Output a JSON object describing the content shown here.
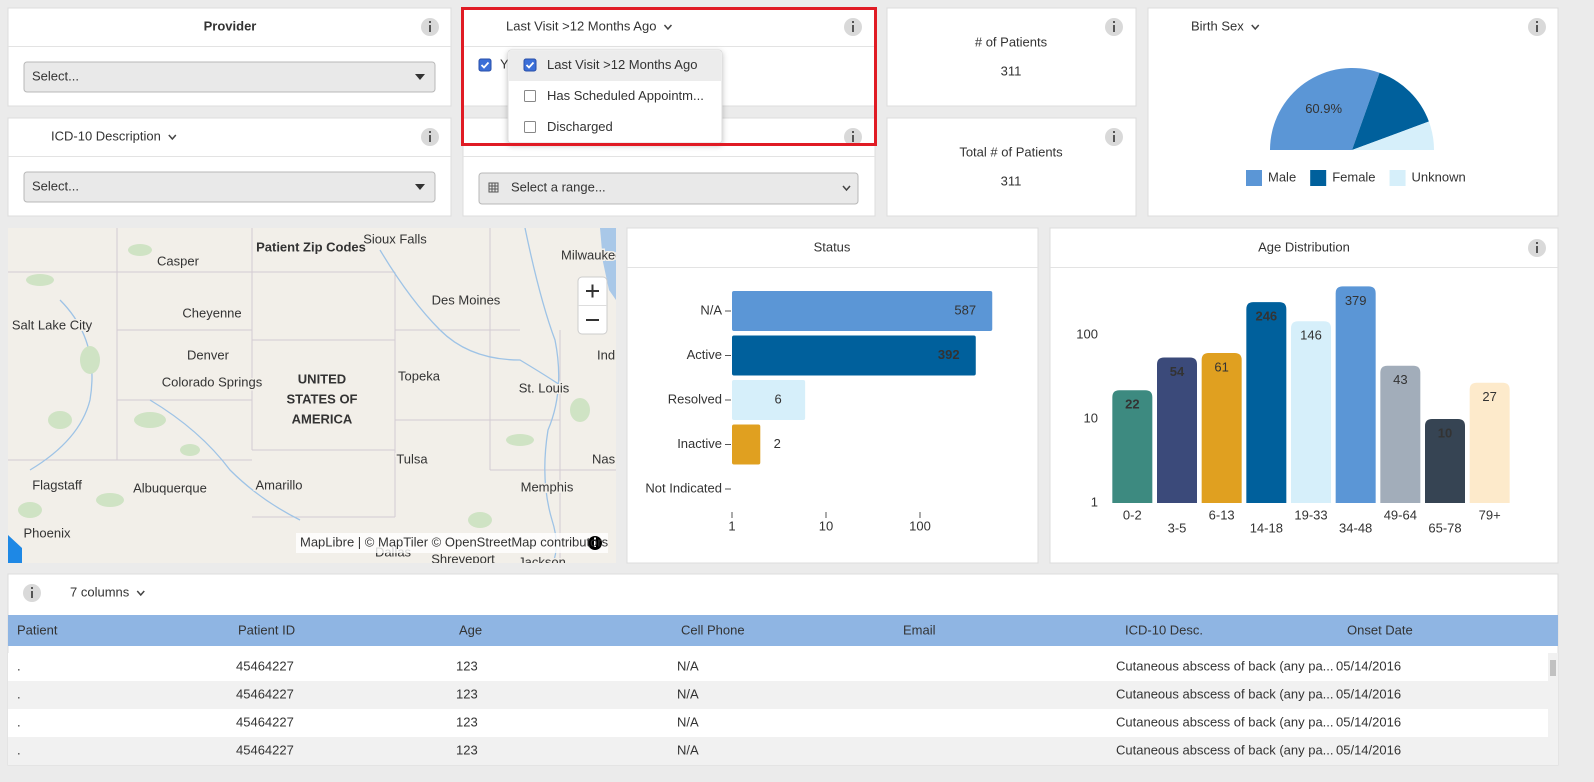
{
  "filters": {
    "provider": {
      "title": "Provider",
      "placeholder": "Select..."
    },
    "icd10": {
      "title": "ICD-10 Description",
      "placeholder": "Select..."
    },
    "last_visit": {
      "title": "Last Visit >12 Months Ago",
      "value": {
        "label": "Yes",
        "checked": true
      },
      "options": [
        {
          "label": "Last Visit >12 Months Ago",
          "checked": true
        },
        {
          "label": "Has Scheduled Appointm...",
          "checked": false
        },
        {
          "label": "Discharged",
          "checked": false
        }
      ]
    },
    "date_range": {
      "placeholder": "Select a range..."
    }
  },
  "kpis": [
    {
      "title": "# of Patients",
      "value": 311
    },
    {
      "title": "Total # of Patients",
      "value": 311
    }
  ],
  "map": {
    "title": "Patient Zip Codes",
    "country": [
      "UNITED",
      "STATES OF",
      "AMERICA"
    ],
    "cities": [
      "Sioux Falls",
      "Casper",
      "Milwaukee",
      "Cheyenne",
      "Des Moines",
      "Salt Lake City",
      "Denver",
      "Indianapolis",
      "Colorado Springs",
      "Topeka",
      "St. Louis",
      "Tulsa",
      "Nashville",
      "Flagstaff",
      "Albuquerque",
      "Amarillo",
      "Memphis",
      "Phoenix",
      "Dallas",
      "Shreveport",
      "Jackson"
    ],
    "attribution": "MapLibre | © MapTiler © OpenStreetMap contributors"
  },
  "chart_data": [
    {
      "type": "hbar",
      "title": "Status",
      "categories": [
        "N/A",
        "Active",
        "Resolved",
        "Inactive",
        "Not Indicated"
      ],
      "values": [
        587,
        392,
        6,
        2,
        null
      ],
      "colors": [
        "#5b96d6",
        "#00609c",
        "#d6effa",
        "#e0a020",
        "#cccccc"
      ],
      "xlim": [
        1,
        1000
      ],
      "xticks": [
        1,
        10,
        100
      ],
      "log_x": true
    },
    {
      "type": "bar",
      "title": "Age Distribution",
      "categories": [
        "0-2",
        "3-5",
        "6-13",
        "14-18",
        "19-33",
        "34-48",
        "49-64",
        "65-78",
        "79+"
      ],
      "values": [
        22,
        54,
        61,
        246,
        146,
        379,
        43,
        10,
        27
      ],
      "colors": [
        "#3d8a80",
        "#3b4a7a",
        "#e0a020",
        "#00609c",
        "#d6effa",
        "#5b96d6",
        "#a2adba",
        "#364453",
        "#fdeacb"
      ],
      "ylim": [
        1,
        1000
      ],
      "yticks": [
        1,
        10,
        100
      ],
      "log_y": true
    },
    {
      "type": "halfpie",
      "title": "Birth Sex",
      "categories": [
        "Male",
        "Female",
        "Unknown"
      ],
      "values": [
        60.9,
        27.8,
        11.3
      ],
      "value_labels": [
        "60.9%",
        null,
        null
      ],
      "colors": [
        "#5b96d6",
        "#00609c",
        "#d6effa"
      ],
      "legend": "bottom"
    }
  ],
  "table": {
    "toolbar": "7 columns",
    "columns": [
      "Patient",
      "Patient ID",
      "Age",
      "Cell Phone",
      "Email",
      "ICD-10 Desc.",
      "Onset Date"
    ],
    "rows": [
      [
        ".",
        "45464227",
        "123",
        "N/A",
        null,
        "Cutaneous abscess of back (any pa...",
        "05/14/2016"
      ],
      [
        ".",
        "45464227",
        "123",
        "N/A",
        null,
        "Cutaneous abscess of back (any pa...",
        "05/14/2016"
      ],
      [
        ".",
        "45464227",
        "123",
        "N/A",
        null,
        "Cutaneous abscess of back (any pa...",
        "05/14/2016"
      ],
      [
        ".",
        "45464227",
        "123",
        "N/A",
        null,
        "Cutaneous abscess of back (any pa...",
        "05/14/2016"
      ]
    ]
  }
}
